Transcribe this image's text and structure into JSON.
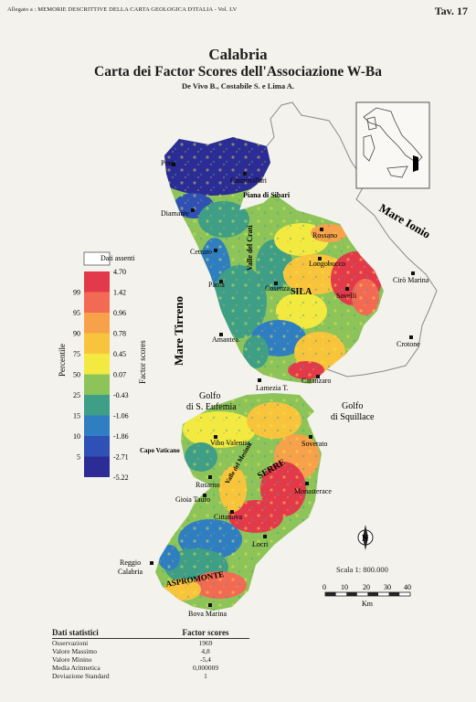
{
  "header": {
    "note": "Allegato a : MEMORIE DESCRITTIVE DELLA CARTA GEOLOGICA D'ITALIA - Vol. LV",
    "plate": "Tav. 17"
  },
  "title": "Calabria",
  "subtitle": "Carta dei Factor Scores dell'Associazione W-Ba",
  "authors": "De Vivo B., Costabile S. e Lima A.",
  "legend": {
    "no_data_label": "Dati assenti",
    "percentile_axis_label": "Percentile",
    "factor_axis_label": "Factor scores",
    "percentiles": [
      "99",
      "95",
      "90",
      "75",
      "50",
      "25",
      "15",
      "10",
      "5"
    ],
    "factor_scores": [
      "4.70",
      "1.42",
      "0.96",
      "0.78",
      "0.45",
      "0.07",
      "-0.43",
      "-1.06",
      "-1.86",
      "-2.71",
      "-5.22"
    ],
    "colors": [
      "#e23a4b",
      "#f26a54",
      "#f7a24a",
      "#f8c43c",
      "#f2ea41",
      "#8cc45a",
      "#3f9e86",
      "#2f7ec2",
      "#2f50b5",
      "#2b2c95"
    ]
  },
  "places": {
    "praia": "Praia",
    "castrovillari": "Castrovillari",
    "piana_sibari": "Piana di Sibari",
    "diamante": "Diamante",
    "rossano": "Rossano",
    "cetraro": "Cetraro",
    "valle_crati": "Valle del Crati",
    "longobucco": "Longobucco",
    "paola": "Paola",
    "cosenza": "Cosenza",
    "sila": "SILA",
    "savelli": "Savelli",
    "ciro_marina": "Cirò Marina",
    "amantea": "Amantea",
    "crotone": "Crotone",
    "lamezia": "Lamezia T.",
    "catanzaro": "Catanzaro",
    "vibo": "Vibo Valentia",
    "capo_vaticano": "Capo Vaticano",
    "soverato": "Soverato",
    "valle_mesima": "Valle del Mesima",
    "serre": "SERRE",
    "rosarno": "Rosarno",
    "gioia_tauro": "Gioia Tauro",
    "monasterace": "Monasterace",
    "cittanova": "Cittanova",
    "locri": "Locri",
    "reggio": "Reggio\nCalabria",
    "aspromonte": "ASPROMONTE",
    "bova": "Bova Marina"
  },
  "seas": {
    "ionio": "Mare Ionio",
    "tirreno": "Mare Tirreno",
    "eufemia": "Golfo\ndi S. Eufemia",
    "squillace": "Golfo\ndi Squillace"
  },
  "scale": {
    "text": "Scala 1: 800.000",
    "ticks": [
      "0",
      "10",
      "20",
      "30",
      "40"
    ],
    "unit": "Km"
  },
  "compass": "N",
  "stats": {
    "header_left": "Dati  statistici",
    "header_right": "Factor scores",
    "rows": [
      {
        "label": "Osservazioni",
        "value": "1969"
      },
      {
        "label": "Valore Massimo",
        "value": "4,8"
      },
      {
        "label": "Valore Minino",
        "value": "-5,4"
      },
      {
        "label": "Media Aritmetica",
        "value": "0,000009"
      },
      {
        "label": "Deviazione Standard",
        "value": "1"
      }
    ]
  }
}
